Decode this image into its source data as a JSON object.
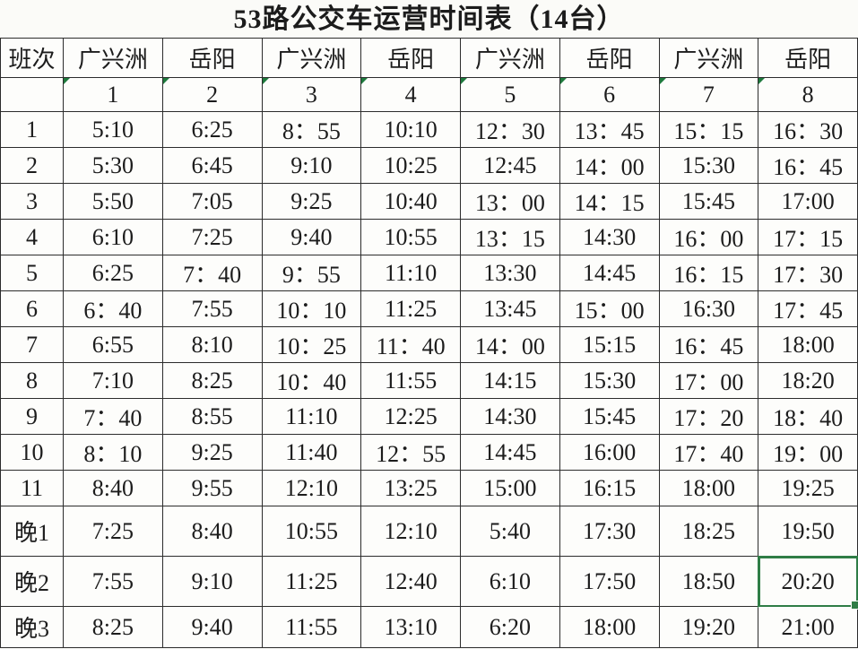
{
  "title": "53路公交车运营时间表（14台）",
  "colors": {
    "selection_green": "#2f7d46",
    "triangle_green": "#1e7a3d",
    "grid_line": "#2c2c2c",
    "background": "#fbfbf8"
  },
  "table": {
    "corner_header": "班次",
    "station_headers": [
      "广兴洲",
      "岳阳",
      "广兴洲",
      "岳阳",
      "广兴洲",
      "岳阳",
      "广兴洲",
      "岳阳"
    ],
    "column_numbers": [
      "1",
      "2",
      "3",
      "4",
      "5",
      "6",
      "7",
      "8"
    ],
    "rows": [
      {
        "label": "1",
        "night": false,
        "times": [
          "5:10",
          "6:25",
          "8：55",
          "10:10",
          "12：30",
          "13：45",
          "15：15",
          "16：30"
        ]
      },
      {
        "label": "2",
        "night": false,
        "times": [
          "5:30",
          "6:45",
          "9:10",
          "10:25",
          "12:45",
          "14：00",
          "15:30",
          "16：45"
        ]
      },
      {
        "label": "3",
        "night": false,
        "times": [
          "5:50",
          "7:05",
          "9:25",
          "10:40",
          "13：00",
          "14：15",
          "15:45",
          "17:00"
        ]
      },
      {
        "label": "4",
        "night": false,
        "times": [
          "6:10",
          "7:25",
          "9:40",
          "10:55",
          "13：15",
          "14:30",
          "16：00",
          "17：15"
        ]
      },
      {
        "label": "5",
        "night": false,
        "times": [
          "6:25",
          "7：40",
          "9：55",
          "11:10",
          "13:30",
          "14:45",
          "16：15",
          "17：30"
        ]
      },
      {
        "label": "6",
        "night": false,
        "times": [
          "6：40",
          "7:55",
          "10：10",
          "11:25",
          "13:45",
          "15：00",
          "16:30",
          "17：45"
        ]
      },
      {
        "label": "7",
        "night": false,
        "times": [
          "6:55",
          "8:10",
          "10：25",
          "11：40",
          "14：00",
          "15:15",
          "16：45",
          "18:00"
        ]
      },
      {
        "label": "8",
        "night": false,
        "times": [
          "7:10",
          "8:25",
          "10：40",
          "11:55",
          "14:15",
          "15:30",
          "17：00",
          "18:20"
        ]
      },
      {
        "label": "9",
        "night": false,
        "times": [
          "7：40",
          "8:55",
          "11:10",
          "12:25",
          "14:30",
          "15:45",
          "17：20",
          "18：40"
        ]
      },
      {
        "label": "10",
        "night": false,
        "times": [
          "8：10",
          "9:25",
          "11:40",
          "12：55",
          "14:45",
          "16:00",
          "17：40",
          "19：00"
        ]
      },
      {
        "label": "11",
        "night": false,
        "times": [
          "8:40",
          "9:55",
          "12:10",
          "13:25",
          "15:00",
          "16:15",
          "18:00",
          "19:25"
        ]
      },
      {
        "label": "晚1",
        "night": true,
        "times": [
          "7:25",
          "8:40",
          "10:55",
          "12:10",
          "5:40",
          "17:30",
          "18:25",
          "19:50"
        ]
      },
      {
        "label": "晚2",
        "night": true,
        "times": [
          "7:55",
          "9:10",
          "11:25",
          "12:40",
          "6:10",
          "17:50",
          "18:50",
          "20:20"
        ]
      },
      {
        "label": "晚3",
        "night": true,
        "times": [
          "8:25",
          "9:40",
          "11:55",
          "13:10",
          "6:20",
          "18:00",
          "19:20",
          "21:00"
        ]
      }
    ],
    "selection": {
      "row_label": "晚2",
      "column_index": 7,
      "value": "20:20"
    }
  }
}
